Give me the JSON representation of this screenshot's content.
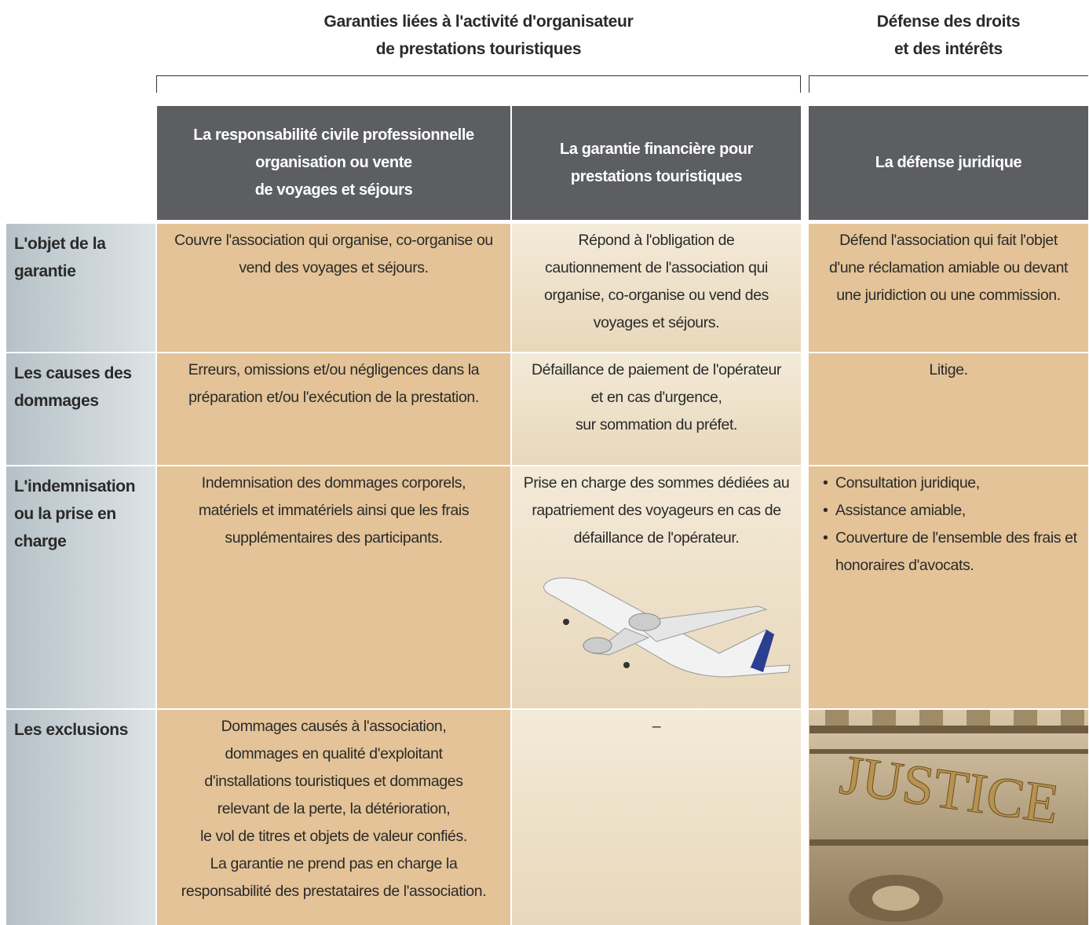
{
  "groups": [
    {
      "lines": [
        "Garanties liées à l'activité d'organisateur",
        "de prestations touristiques"
      ]
    },
    {
      "lines": [
        "Défense des droits",
        "et des intérêts"
      ]
    }
  ],
  "columns": [
    {
      "lines": [
        "La responsabilité civile professionnelle",
        "organisation ou vente",
        "de voyages et séjours"
      ]
    },
    {
      "lines": [
        "La garantie financière pour",
        "prestations touristiques"
      ]
    },
    {
      "lines": [
        "La défense juridique"
      ]
    }
  ],
  "rows": [
    {
      "label": [
        "L'objet de la",
        "garantie"
      ],
      "cells": [
        {
          "lines": [
            "Couvre l'association qui organise, co-organise ou",
            "vend des voyages et séjours."
          ]
        },
        {
          "lines": [
            "Répond à l'obligation de",
            "cautionnement de l'association qui",
            "organise, co-organise ou vend des",
            "voyages et séjours."
          ]
        },
        {
          "lines": [
            "Défend l'association qui fait l'objet",
            "d'une réclamation amiable ou devant",
            "une juridiction ou une commission."
          ]
        }
      ]
    },
    {
      "label": [
        "Les causes des",
        "dommages"
      ],
      "cells": [
        {
          "lines": [
            "Erreurs, omissions et/ou négligences dans la",
            "préparation et/ou l'exécution de la prestation."
          ]
        },
        {
          "lines": [
            "Défaillance de paiement de l'opérateur",
            "et en cas d'urgence,",
            "sur sommation du préfet."
          ]
        },
        {
          "lines": [
            "Litige."
          ]
        }
      ]
    },
    {
      "label": [
        "L'indemnisation",
        "ou la prise en",
        "charge"
      ],
      "cells": [
        {
          "lines": [
            "Indemnisation des dommages corporels,",
            "matériels et immatériels ainsi que les frais",
            "supplémentaires des participants."
          ]
        },
        {
          "lines": [
            "Prise en charge des sommes dédiées au",
            "rapatriement des voyageurs en cas de",
            "défaillance de l'opérateur."
          ]
        },
        {
          "bullets": [
            "Consultation juridique,",
            "Assistance amiable,",
            "Couverture de l'ensemble des frais et honoraires d'avocats."
          ]
        }
      ]
    },
    {
      "label": [
        "Les exclusions"
      ],
      "cells": [
        {
          "lines": [
            "Dommages causés à l'association,",
            "dommages en qualité d'exploitant",
            "d'installations touristiques et dommages",
            "relevant de la perte, la détérioration,",
            "le vol de titres et objets de valeur confiés.",
            "La garantie ne prend pas en charge la",
            "responsabilité des prestataires de l'association."
          ]
        },
        {
          "lines": [
            "–"
          ]
        },
        {
          "image_text": "JUSTICE"
        }
      ]
    }
  ]
}
